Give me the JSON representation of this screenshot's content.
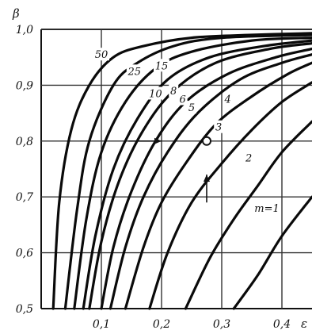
{
  "chart_data": {
    "type": "line",
    "xlabel": "ε",
    "ylabel": "β",
    "xlim": [
      0.0,
      0.45
    ],
    "ylim": [
      0.5,
      1.0
    ],
    "xticks": [
      0.1,
      0.2,
      0.3,
      0.4
    ],
    "yticks": [
      0.5,
      0.6,
      0.7,
      0.8,
      0.9,
      1.0
    ],
    "x_tick_labels": [
      "0,1",
      "0,2",
      "0,3",
      "0,4"
    ],
    "y_tick_labels": [
      "0,5",
      "0,6",
      "0,7",
      "0,8",
      "0,9",
      "1,0"
    ],
    "grid": true,
    "series": [
      {
        "label": "50",
        "points": [
          [
            0.02,
            0.5
          ],
          [
            0.03,
            0.69
          ],
          [
            0.05,
            0.82
          ],
          [
            0.08,
            0.9
          ],
          [
            0.12,
            0.95
          ],
          [
            0.17,
            0.97
          ],
          [
            0.25,
            0.985
          ],
          [
            0.35,
            0.99
          ],
          [
            0.45,
            0.993
          ]
        ]
      },
      {
        "label": "25",
        "points": [
          [
            0.04,
            0.5
          ],
          [
            0.06,
            0.68
          ],
          [
            0.08,
            0.8
          ],
          [
            0.12,
            0.9
          ],
          [
            0.16,
            0.94
          ],
          [
            0.22,
            0.97
          ],
          [
            0.3,
            0.985
          ],
          [
            0.45,
            0.99
          ]
        ]
      },
      {
        "label": "15",
        "points": [
          [
            0.055,
            0.5
          ],
          [
            0.075,
            0.66
          ],
          [
            0.1,
            0.78
          ],
          [
            0.14,
            0.87
          ],
          [
            0.19,
            0.93
          ],
          [
            0.25,
            0.96
          ],
          [
            0.35,
            0.98
          ],
          [
            0.45,
            0.985
          ]
        ]
      },
      {
        "label": "10",
        "points": [
          [
            0.07,
            0.5
          ],
          [
            0.09,
            0.63
          ],
          [
            0.12,
            0.75
          ],
          [
            0.16,
            0.84
          ],
          [
            0.21,
            0.91
          ],
          [
            0.28,
            0.95
          ],
          [
            0.37,
            0.97
          ],
          [
            0.45,
            0.98
          ]
        ]
      },
      {
        "label": "8",
        "points": [
          [
            0.08,
            0.5
          ],
          [
            0.1,
            0.62
          ],
          [
            0.13,
            0.73
          ],
          [
            0.17,
            0.82
          ],
          [
            0.22,
            0.89
          ],
          [
            0.29,
            0.94
          ],
          [
            0.38,
            0.965
          ],
          [
            0.45,
            0.975
          ]
        ]
      },
      {
        "label": "6",
        "points": [
          [
            0.1,
            0.5
          ],
          [
            0.12,
            0.61
          ],
          [
            0.15,
            0.71
          ],
          [
            0.19,
            0.8
          ],
          [
            0.24,
            0.87
          ],
          [
            0.31,
            0.92
          ],
          [
            0.39,
            0.95
          ],
          [
            0.45,
            0.965
          ]
        ]
      },
      {
        "label": "5",
        "points": [
          [
            0.115,
            0.5
          ],
          [
            0.14,
            0.61
          ],
          [
            0.17,
            0.7
          ],
          [
            0.21,
            0.78
          ],
          [
            0.26,
            0.85
          ],
          [
            0.33,
            0.91
          ],
          [
            0.4,
            0.94
          ],
          [
            0.45,
            0.955
          ]
        ]
      },
      {
        "label": "4",
        "points": [
          [
            0.14,
            0.5
          ],
          [
            0.17,
            0.61
          ],
          [
            0.2,
            0.69
          ],
          [
            0.24,
            0.76
          ],
          [
            0.29,
            0.83
          ],
          [
            0.35,
            0.88
          ],
          [
            0.41,
            0.92
          ],
          [
            0.45,
            0.94
          ]
        ]
      },
      {
        "label": "3",
        "points": [
          [
            0.18,
            0.5
          ],
          [
            0.21,
            0.6
          ],
          [
            0.25,
            0.69
          ],
          [
            0.3,
            0.76
          ],
          [
            0.35,
            0.82
          ],
          [
            0.4,
            0.87
          ],
          [
            0.45,
            0.905
          ]
        ]
      },
      {
        "label": "2",
        "points": [
          [
            0.24,
            0.5
          ],
          [
            0.28,
            0.59
          ],
          [
            0.32,
            0.66
          ],
          [
            0.36,
            0.72
          ],
          [
            0.4,
            0.78
          ],
          [
            0.45,
            0.835
          ]
        ]
      },
      {
        "label": "m=1",
        "points": [
          [
            0.32,
            0.5
          ],
          [
            0.36,
            0.56
          ],
          [
            0.4,
            0.63
          ],
          [
            0.45,
            0.7
          ]
        ]
      }
    ],
    "label_positions": [
      {
        "text": "50",
        "x": 0.1,
        "y": 0.95
      },
      {
        "text": "25",
        "x": 0.155,
        "y": 0.92
      },
      {
        "text": "15",
        "x": 0.2,
        "y": 0.93
      },
      {
        "text": "10",
        "x": 0.19,
        "y": 0.88
      },
      {
        "text": "8",
        "x": 0.22,
        "y": 0.885
      },
      {
        "text": "6",
        "x": 0.235,
        "y": 0.87
      },
      {
        "text": "5",
        "x": 0.25,
        "y": 0.855
      },
      {
        "text": "4",
        "x": 0.31,
        "y": 0.87
      },
      {
        "text": "3",
        "x": 0.295,
        "y": 0.82
      },
      {
        "text": "2",
        "x": 0.345,
        "y": 0.765
      },
      {
        "text": "m=1",
        "x": 0.375,
        "y": 0.675
      }
    ],
    "marker_point": [
      0.275,
      0.8
    ],
    "arrows": [
      {
        "from": [
          0.145,
          0.8
        ],
        "to": [
          0.2,
          0.8
        ]
      },
      {
        "from": [
          0.275,
          0.69
        ],
        "to": [
          0.275,
          0.74
        ]
      }
    ]
  }
}
